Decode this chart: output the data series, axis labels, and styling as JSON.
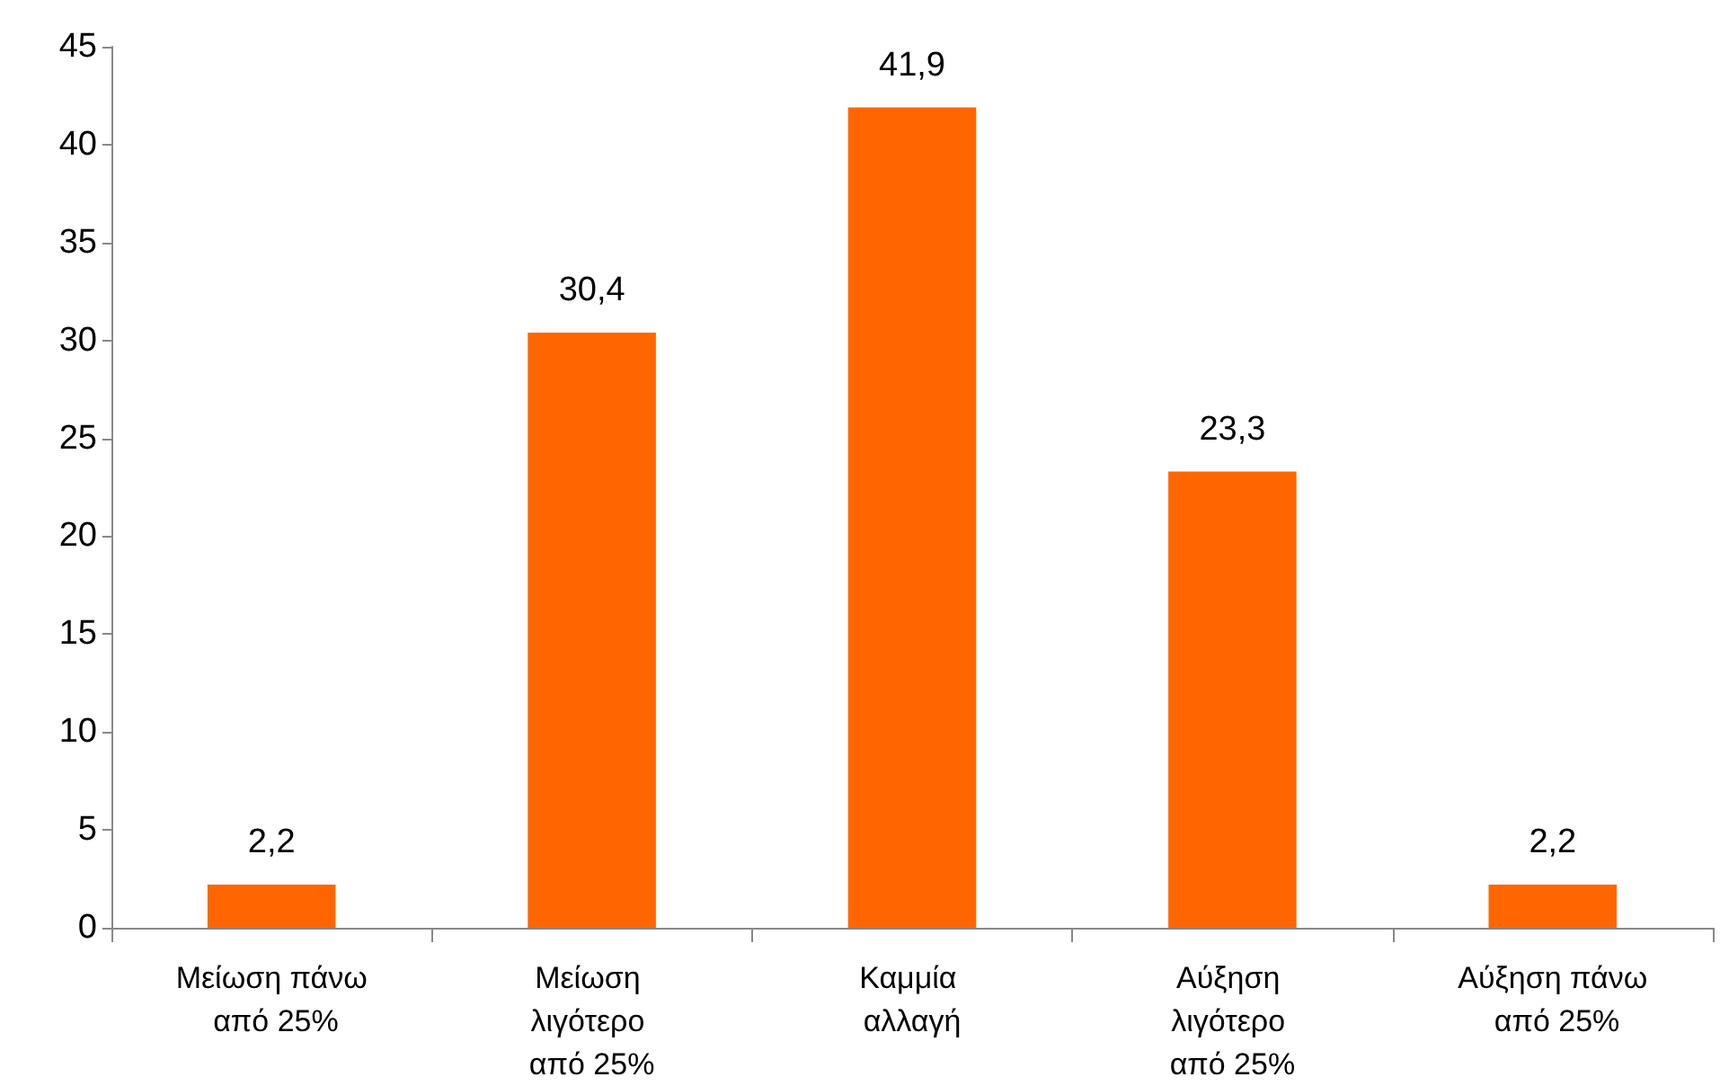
{
  "chart_data": {
    "type": "bar",
    "categories": [
      "Μείωση πάνω από 25%",
      "Μείωση λιγότερο από 25%",
      "Καμμία αλλαγή",
      "Αύξηση λιγότερο από 25%",
      "Αύξηση πάνω από 25%"
    ],
    "values": [
      2.2,
      30.4,
      41.9,
      23.3,
      2.2
    ],
    "value_labels": [
      "2,2",
      "30,4",
      "41,9",
      "23,3",
      "2,2"
    ],
    "color": "#ff6600",
    "ylim": [
      0,
      45
    ],
    "yticks": [
      0,
      5,
      10,
      15,
      20,
      25,
      30,
      35,
      40,
      45
    ],
    "grid": false
  }
}
